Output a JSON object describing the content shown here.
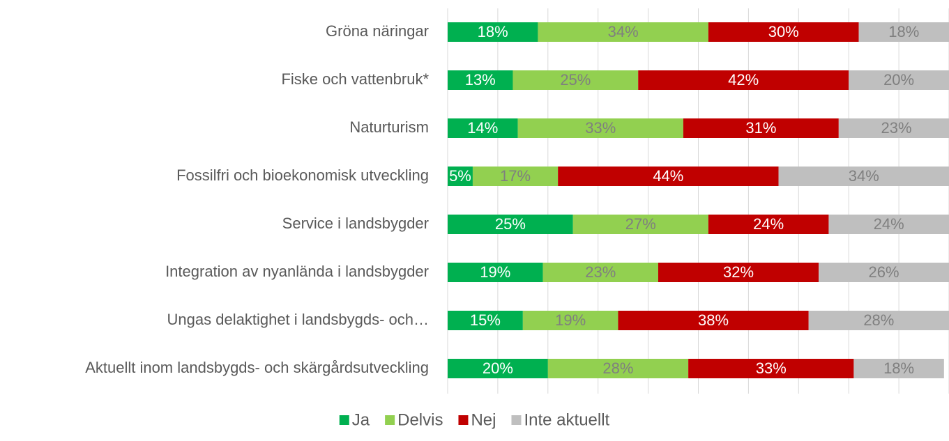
{
  "chart_data": {
    "type": "stacked-bar-horizontal",
    "categories": [
      "Gröna näringar",
      "Fiske och vattenbruk*",
      "Naturturism",
      "Fossilfri och bioekonomisk utveckling",
      "Service i landsbygder",
      "Integration av nyanlända i landsbygder",
      "Ungas delaktighet i landsbygds- och…",
      "Aktuellt inom landsbygds- och skärgårdsutveckling"
    ],
    "series": [
      {
        "name": "Ja",
        "color": "#00b050",
        "label_color": "#ffffff",
        "values": [
          18,
          13,
          14,
          5,
          25,
          19,
          15,
          20
        ],
        "value_labels": [
          "18%",
          "13%",
          "14%",
          "5%",
          "25%",
          "19%",
          "15%",
          "20%"
        ]
      },
      {
        "name": "Delvis",
        "color": "#92d050",
        "label_color": "#7f7f7f",
        "values": [
          34,
          25,
          33,
          17,
          27,
          23,
          19,
          28
        ],
        "value_labels": [
          "34%",
          "25%",
          "33%",
          "17%",
          "27%",
          "23%",
          "19%",
          "28%"
        ]
      },
      {
        "name": "Nej",
        "color": "#c00000",
        "label_color": "#ffffff",
        "values": [
          30,
          42,
          31,
          44,
          24,
          32,
          38,
          33
        ],
        "value_labels": [
          "30%",
          "42%",
          "31%",
          "44%",
          "24%",
          "32%",
          "38%",
          "33%"
        ]
      },
      {
        "name": "Inte aktuellt",
        "color": "#bfbfbf",
        "label_color": "#7f7f7f",
        "values": [
          18,
          20,
          23,
          34,
          24,
          26,
          28,
          18
        ],
        "value_labels": [
          "18%",
          "20%",
          "23%",
          "34%",
          "24%",
          "26%",
          "28%",
          "18%"
        ]
      }
    ],
    "xlim": [
      0,
      100
    ],
    "xticks": [
      0,
      10,
      20,
      30,
      40,
      50,
      60,
      70,
      80,
      90,
      100
    ],
    "grid": true,
    "legend": "bottom"
  }
}
